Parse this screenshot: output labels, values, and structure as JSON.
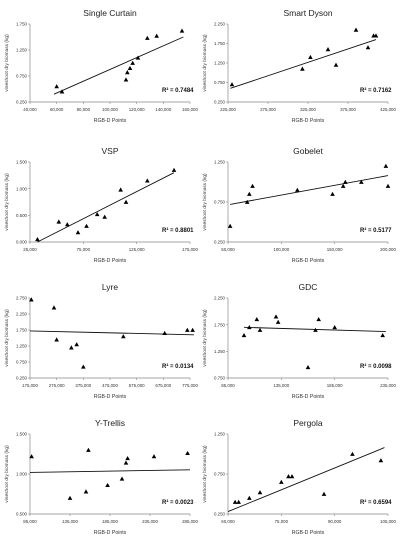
{
  "figure": {
    "panels": [
      {
        "title": "Single Curtain",
        "xlabel": "RGB-D Points",
        "ylabel": "vineshoot dry biomass (kg)",
        "r2": "R² = 0.7484"
      },
      {
        "title": "Smart Dyson",
        "xlabel": "RGB-D Points",
        "ylabel": "vineshoot dry biomass (kg)",
        "r2": "R² = 0.7162"
      },
      {
        "title": "VSP",
        "xlabel": "RGB-D Points",
        "ylabel": "vineshoot dry biomass (kg)",
        "r2": "R² = 0.8801"
      },
      {
        "title": "Gobelet",
        "xlabel": "RGB-D Points",
        "ylabel": "vineshoot dry biomass (kg)",
        "r2": "R² = 0.5177"
      },
      {
        "title": "Lyre",
        "xlabel": "RGB-D Points",
        "ylabel": "vineshoot dry biomass (kg)",
        "r2": "R² = 0.0134"
      },
      {
        "title": "GDC",
        "xlabel": "RGB-D Points",
        "ylabel": "vineshoot dry biomass (kg)",
        "r2": "R² = 0.0098"
      },
      {
        "title": "Y-Trellis",
        "xlabel": "RGB-D Points",
        "ylabel": "vineshoot dry biomass (kg)",
        "r2": "R² = 0.0023"
      },
      {
        "title": "Pergola",
        "xlabel": "RGB-D Points",
        "ylabel": "vineshoot dry biomass (kg)",
        "r2": "R² = 0.6594"
      }
    ]
  },
  "chart_data": [
    {
      "type": "scatter",
      "title": "Single Curtain",
      "xlabel": "RGB-D Points",
      "ylabel": "vineshoot dry biomass (kg)",
      "xlim": [
        40000,
        160000
      ],
      "ylim": [
        0.25,
        1.75
      ],
      "xticks": [
        "40,000",
        "60,000",
        "80,000",
        "100,000",
        "120,000",
        "140,000",
        "160,000"
      ],
      "yticks": [
        "0.250",
        "0.750",
        "1.250",
        "1.750"
      ],
      "x": [
        60000,
        64000,
        112000,
        113000,
        115000,
        117000,
        121000,
        128000,
        135000,
        154000
      ],
      "y": [
        0.55,
        0.45,
        0.68,
        0.82,
        0.9,
        1.0,
        1.1,
        1.48,
        1.52,
        1.62
      ],
      "trendline": [
        [
          58000,
          0.4
        ],
        [
          155000,
          1.5
        ]
      ],
      "r2": 0.7484
    },
    {
      "type": "scatter",
      "title": "Smart Dyson",
      "xlabel": "RGB-D Points",
      "ylabel": "vineshoot dry biomass (kg)",
      "xlim": [
        225000,
        425000
      ],
      "ylim": [
        0.25,
        2.25
      ],
      "xticks": [
        "225,000",
        "275,000",
        "325,000",
        "375,000",
        "425,000"
      ],
      "yticks": [
        "0.250",
        "0.750",
        "1.250",
        "1.750",
        "2.250"
      ],
      "x": [
        230000,
        318000,
        328000,
        350000,
        360000,
        385000,
        400000,
        407000,
        410000
      ],
      "y": [
        0.7,
        1.1,
        1.4,
        1.6,
        1.2,
        2.1,
        1.65,
        1.95,
        1.95
      ],
      "trendline": [
        [
          228000,
          0.6
        ],
        [
          410000,
          1.85
        ]
      ],
      "r2": 0.7162
    },
    {
      "type": "scatter",
      "title": "VSP",
      "xlabel": "RGB-D Points",
      "ylabel": "vineshoot dry biomass (kg)",
      "xlim": [
        25000,
        175000
      ],
      "ylim": [
        0.0,
        1.5
      ],
      "xticks": [
        "25,000",
        "75,000",
        "125,000",
        "175,000"
      ],
      "yticks": [
        "0.000",
        "0.500",
        "1.000",
        "1.500"
      ],
      "x": [
        32000,
        52000,
        60000,
        70000,
        78000,
        88000,
        95000,
        110000,
        115000,
        135000,
        160000
      ],
      "y": [
        0.05,
        0.38,
        0.33,
        0.18,
        0.3,
        0.52,
        0.47,
        0.98,
        0.75,
        1.15,
        1.35
      ],
      "trendline": [
        [
          32000,
          0.0
        ],
        [
          160000,
          1.3
        ]
      ],
      "r2": 0.8801
    },
    {
      "type": "scatter",
      "title": "Gobelet",
      "xlabel": "RGB-D Points",
      "ylabel": "vineshoot dry biomass (kg)",
      "xlim": [
        50000,
        200000
      ],
      "ylim": [
        0.25,
        1.25
      ],
      "xticks": [
        "50,000",
        "100,000",
        "150,000",
        "200,000"
      ],
      "yticks": [
        "0.250",
        "0.750",
        "1.250"
      ],
      "x": [
        52000,
        68000,
        70000,
        73000,
        115000,
        148000,
        158000,
        160000,
        175000,
        198000,
        200000
      ],
      "y": [
        0.45,
        0.75,
        0.85,
        0.95,
        0.9,
        0.85,
        0.95,
        1.0,
        1.0,
        1.2,
        0.95
      ],
      "trendline": [
        [
          52000,
          0.72
        ],
        [
          200000,
          1.08
        ]
      ],
      "r2": 0.5177
    },
    {
      "type": "scatter",
      "title": "Lyre",
      "xlabel": "RGB-D Points",
      "ylabel": "vineshoot dry biomass (kg)",
      "xlim": [
        175000,
        775000
      ],
      "ylim": [
        0.25,
        2.75
      ],
      "xticks": [
        "175,000",
        "275,000",
        "375,000",
        "475,000",
        "575,000",
        "675,000",
        "775,000"
      ],
      "yticks": [
        "0.250",
        "0.750",
        "1.250",
        "1.750",
        "2.250",
        "2.750"
      ],
      "x": [
        180000,
        265000,
        275000,
        330000,
        350000,
        375000,
        525000,
        680000,
        765000,
        785000
      ],
      "y": [
        2.7,
        2.45,
        1.45,
        1.2,
        1.3,
        0.6,
        1.55,
        1.65,
        1.75,
        1.75
      ],
      "trendline": [
        [
          175000,
          1.72
        ],
        [
          790000,
          1.6
        ]
      ],
      "r2": 0.0134
    },
    {
      "type": "scatter",
      "title": "GDC",
      "xlabel": "RGB-D Points",
      "ylabel": "vineshoot dry biomass (kg)",
      "xlim": [
        85000,
        235000
      ],
      "ylim": [
        0.75,
        2.25
      ],
      "xticks": [
        "85,000",
        "135,000",
        "185,000",
        "235,000"
      ],
      "yticks": [
        "0.750",
        "1.250",
        "1.750",
        "2.250"
      ],
      "x": [
        100000,
        105000,
        112000,
        115000,
        130000,
        132000,
        160000,
        167000,
        170000,
        185000,
        230000
      ],
      "y": [
        1.55,
        1.7,
        1.85,
        1.65,
        1.9,
        1.8,
        0.95,
        1.65,
        1.85,
        1.7,
        1.55
      ],
      "trendline": [
        [
          100000,
          1.7
        ],
        [
          233000,
          1.62
        ]
      ],
      "r2": 0.0098
    },
    {
      "type": "scatter",
      "title": "Y-Trellis",
      "xlabel": "RGB-D Points",
      "ylabel": "vineshoot dry biomass (kg)",
      "xlim": [
        85000,
        285000
      ],
      "ylim": [
        0.5,
        1.75
      ],
      "xticks": [
        "85,000",
        "135,000",
        "185,000",
        "235,000",
        "285,000"
      ],
      "yticks": [
        "0.500",
        "1.000",
        "1.500"
      ],
      "x": [
        87000,
        135000,
        155000,
        158000,
        182000,
        200000,
        205000,
        207000,
        240000,
        282000
      ],
      "y": [
        1.4,
        0.75,
        0.85,
        1.5,
        0.95,
        1.05,
        1.3,
        1.37,
        1.4,
        1.45
      ],
      "trendline": [
        [
          85000,
          1.15
        ],
        [
          285000,
          1.19
        ]
      ],
      "r2": 0.0023
    },
    {
      "type": "scatter",
      "title": "Pergola",
      "xlabel": "RGB-D Points",
      "ylabel": "vineshoot dry biomass (kg)",
      "xlim": [
        60000,
        105000
      ],
      "ylim": [
        0.25,
        1.25
      ],
      "xticks": [
        "60,000",
        "75,000",
        "90,000",
        "105,000"
      ],
      "yticks": [
        "0.250",
        "0.750",
        "1.250"
      ],
      "x": [
        62000,
        63000,
        66000,
        69000,
        75000,
        77000,
        78000,
        87000,
        95000,
        103000
      ],
      "y": [
        0.4,
        0.4,
        0.45,
        0.52,
        0.65,
        0.72,
        0.72,
        0.5,
        1.0,
        0.92
      ],
      "trendline": [
        [
          60000,
          0.28
        ],
        [
          104000,
          1.08
        ]
      ],
      "r2": 0.6594
    }
  ]
}
